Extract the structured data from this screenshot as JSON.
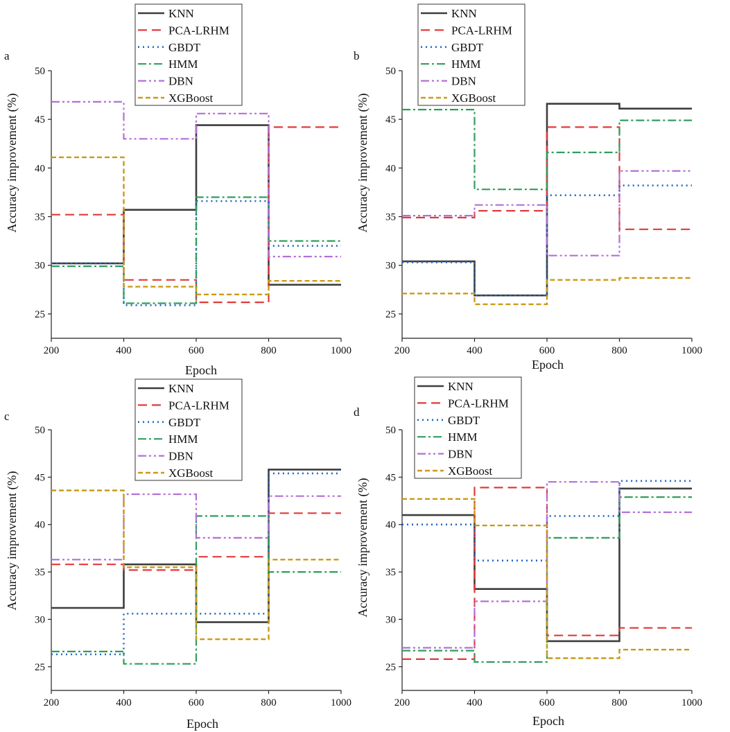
{
  "series_styles": [
    {
      "name": "KNN",
      "color": "#3d3d3d",
      "dash": "",
      "width": 2.6
    },
    {
      "name": "PCA-LRHM",
      "color": "#e03a3a",
      "dash": "13 7",
      "width": 2.2
    },
    {
      "name": "GBDT",
      "color": "#2166c4",
      "dash": "2 5",
      "width": 2.6
    },
    {
      "name": "HMM",
      "color": "#2e9e5b",
      "dash": "12 4 3 4",
      "width": 2.2
    },
    {
      "name": "DBN",
      "color": "#b36fd6",
      "dash": "12 4 3 4 3 4",
      "width": 2.2
    },
    {
      "name": "XGBoost",
      "color": "#c99a15",
      "dash": "7 4",
      "width": 2.4
    }
  ],
  "chart_data": [
    {
      "panel": "a",
      "type": "line",
      "step": true,
      "xlabel": "Epoch",
      "ylabel": "Accuracy improvement (%)",
      "xlim": [
        200,
        1000
      ],
      "ylim": [
        22.5,
        50
      ],
      "xticks": [
        200,
        400,
        600,
        800,
        1000
      ],
      "yticks": [
        25,
        30,
        35,
        40,
        45,
        50
      ],
      "x": [
        200,
        400,
        600,
        800,
        1000
      ],
      "series": [
        {
          "name": "KNN",
          "values": [
            30.2,
            35.7,
            44.4,
            28.0,
            28.0
          ]
        },
        {
          "name": "PCA-LRHM",
          "values": [
            35.2,
            28.5,
            26.2,
            44.2,
            44.2
          ]
        },
        {
          "name": "GBDT",
          "values": [
            30.2,
            25.9,
            36.6,
            32.0,
            32.0
          ]
        },
        {
          "name": "HMM",
          "values": [
            29.9,
            26.1,
            37.0,
            32.5,
            32.5
          ]
        },
        {
          "name": "DBN",
          "values": [
            46.8,
            43.0,
            45.6,
            30.9,
            30.9
          ]
        },
        {
          "name": "XGBoost",
          "values": [
            41.1,
            27.8,
            27.0,
            28.4,
            28.4
          ]
        }
      ]
    },
    {
      "panel": "b",
      "type": "line",
      "step": true,
      "xlabel": "Epoch",
      "ylabel": "Accuracy improvement (%)",
      "xlim": [
        200,
        1000
      ],
      "ylim": [
        22.5,
        50
      ],
      "xticks": [
        200,
        400,
        600,
        800,
        1000
      ],
      "yticks": [
        25,
        30,
        35,
        40,
        45,
        50
      ],
      "x": [
        200,
        400,
        600,
        800,
        1000
      ],
      "series": [
        {
          "name": "KNN",
          "values": [
            30.4,
            26.9,
            46.6,
            46.1,
            46.1
          ]
        },
        {
          "name": "PCA-LRHM",
          "values": [
            34.9,
            35.6,
            44.2,
            33.7,
            33.7
          ]
        },
        {
          "name": "GBDT",
          "values": [
            30.3,
            26.9,
            37.2,
            38.2,
            38.2
          ]
        },
        {
          "name": "HMM",
          "values": [
            46.0,
            37.8,
            41.6,
            44.9,
            44.9
          ]
        },
        {
          "name": "DBN",
          "values": [
            35.1,
            36.2,
            31.0,
            39.7,
            39.7
          ]
        },
        {
          "name": "XGBoost",
          "values": [
            27.1,
            26.0,
            28.5,
            28.7,
            28.7
          ]
        }
      ]
    },
    {
      "panel": "c",
      "type": "line",
      "step": true,
      "xlabel": "Epoch",
      "ylabel": "Accuracy improvement (%)",
      "xlim": [
        200,
        1000
      ],
      "ylim": [
        22.5,
        50
      ],
      "xticks": [
        200,
        400,
        600,
        800,
        1000
      ],
      "yticks": [
        25,
        30,
        35,
        40,
        45,
        50
      ],
      "x": [
        200,
        400,
        600,
        800,
        1000
      ],
      "series": [
        {
          "name": "KNN",
          "values": [
            31.2,
            35.8,
            29.7,
            45.8,
            45.8
          ]
        },
        {
          "name": "PCA-LRHM",
          "values": [
            35.8,
            35.2,
            36.6,
            41.2,
            41.2
          ]
        },
        {
          "name": "GBDT",
          "values": [
            26.3,
            30.6,
            30.6,
            45.4,
            45.4
          ]
        },
        {
          "name": "HMM",
          "values": [
            26.6,
            25.3,
            40.9,
            35.0,
            35.0
          ]
        },
        {
          "name": "DBN",
          "values": [
            36.3,
            43.2,
            38.6,
            43.0,
            43.0
          ]
        },
        {
          "name": "XGBoost",
          "values": [
            43.6,
            35.5,
            27.9,
            36.3,
            36.3
          ]
        }
      ]
    },
    {
      "panel": "d",
      "type": "line",
      "step": true,
      "xlabel": "Epoch",
      "ylabel": "Accuracy improvement (%)",
      "xlim": [
        200,
        1000
      ],
      "ylim": [
        22.5,
        50
      ],
      "xticks": [
        200,
        400,
        600,
        800,
        1000
      ],
      "yticks": [
        25,
        30,
        35,
        40,
        45,
        50
      ],
      "x": [
        200,
        400,
        600,
        800,
        1000
      ],
      "series": [
        {
          "name": "KNN",
          "values": [
            41.0,
            33.2,
            27.7,
            43.8,
            43.8
          ]
        },
        {
          "name": "PCA-LRHM",
          "values": [
            25.8,
            43.9,
            28.3,
            29.1,
            29.1
          ]
        },
        {
          "name": "GBDT",
          "values": [
            40.0,
            36.2,
            40.9,
            44.6,
            44.6
          ]
        },
        {
          "name": "HMM",
          "values": [
            26.7,
            25.5,
            38.6,
            42.9,
            42.9
          ]
        },
        {
          "name": "DBN",
          "values": [
            27.0,
            31.9,
            44.5,
            41.3,
            41.3
          ]
        },
        {
          "name": "XGBoost",
          "values": [
            42.7,
            39.9,
            25.9,
            26.8,
            26.8
          ]
        }
      ]
    }
  ]
}
